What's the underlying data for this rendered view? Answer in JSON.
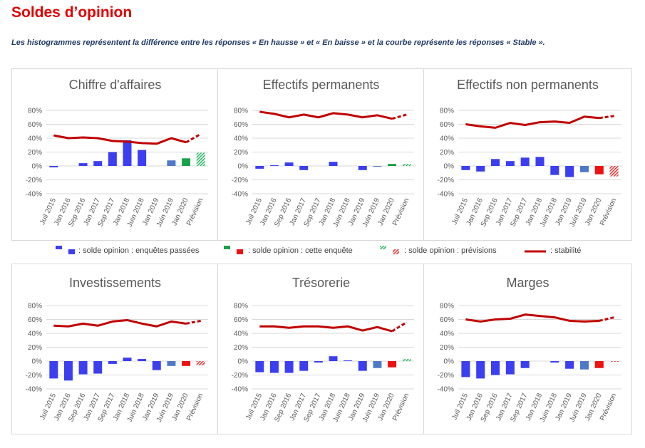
{
  "page": {
    "title": "Soldes d’opinion",
    "subtitle": "Les histogrammes représentent la différence entre les réponses « En hausse » et « En baisse » et la courbe représente les réponses « Stable »."
  },
  "legend": {
    "past_label": ": solde opinion : enquêtes passées",
    "current_label": ": solde opinion : cette enquête",
    "forecast_label": ": solde opinion : prévisions",
    "stability_label": ": stabilité"
  },
  "colors": {
    "past": "#3b3ff0",
    "past_recent": "#4f79c6",
    "current_green": "#1aa24a",
    "current_red": "#ee1111",
    "forecast_green": "#2fb866",
    "forecast_red": "#e53b3b",
    "stability": "#c00000",
    "grid": "#d9d9d9"
  },
  "chart_data": [
    {
      "type": "bar",
      "title": "Chiffre d'affaires",
      "categories": [
        "Juil 2015",
        "Jan 2016",
        "Sep 2016",
        "Jan 2017",
        "Sep 2017",
        "Jan 2018",
        "Juin 2018",
        "Jan 2019",
        "Juin 2019",
        "Jan 2020",
        "Prévision"
      ],
      "ylim": [
        -40,
        80
      ],
      "yticks": [
        "80%",
        "60%",
        "40%",
        "20%",
        "0%",
        "-20%",
        "-40%"
      ],
      "series": [
        {
          "values": [
            -2,
            0,
            4,
            7,
            20,
            37,
            23,
            0,
            8,
            11,
            19
          ]
        },
        {
          "values": [
            44,
            40,
            41,
            40,
            36,
            35,
            33,
            32,
            40,
            34,
            46
          ]
        }
      ]
    },
    {
      "type": "bar",
      "title": "Effectifs permanents",
      "categories": [
        "Juil 2015",
        "Jan 2016",
        "Sep 2016",
        "Jan 2017",
        "Sep 2017",
        "Jan 2018",
        "Juin 2018",
        "Jan 2019",
        "Juin 2019",
        "Jan 2020",
        "Prévision"
      ],
      "ylim": [
        -40,
        80
      ],
      "yticks": [
        "80%",
        "60%",
        "40%",
        "20%",
        "0%",
        "-20%",
        "-40%"
      ],
      "series": [
        {
          "values": [
            -4,
            1,
            5,
            -6,
            0,
            6,
            0,
            -6,
            -1,
            3,
            3
          ]
        },
        {
          "values": [
            78,
            75,
            70,
            74,
            70,
            76,
            74,
            70,
            73,
            68,
            74
          ]
        }
      ]
    },
    {
      "type": "bar",
      "title": "Effectifs non permanents",
      "categories": [
        "Juil 2015",
        "Jan 2016",
        "Sep 2016",
        "Jan 2017",
        "Sep 2017",
        "Jan 2018",
        "Juin 2018",
        "Jan 2019",
        "Juin 2019",
        "Jan 2020",
        "Prévision"
      ],
      "ylim": [
        -40,
        80
      ],
      "yticks": [
        "80%",
        "60%",
        "40%",
        "20%",
        "0%",
        "-20%",
        "-40%"
      ],
      "series": [
        {
          "values": [
            -6,
            -8,
            10,
            7,
            12,
            13,
            -13,
            -16,
            -9,
            -12,
            -15
          ]
        },
        {
          "values": [
            60,
            57,
            55,
            62,
            59,
            63,
            64,
            62,
            71,
            69,
            72
          ]
        }
      ]
    },
    {
      "type": "bar",
      "title": "Investissements",
      "categories": [
        "Juil 2015",
        "Jan 2016",
        "Sep 2016",
        "Jan 2017",
        "Sep 2017",
        "Jan 2018",
        "Juin 2018",
        "Jan 2019",
        "Juin 2019",
        "Jan 2020",
        "Prévision"
      ],
      "ylim": [
        -40,
        80
      ],
      "yticks": [
        "80%",
        "60%",
        "40%",
        "20%",
        "0%",
        "-20%",
        "-40%"
      ],
      "series": [
        {
          "values": [
            -25,
            -28,
            -19,
            -18,
            -4,
            5,
            3,
            -13,
            -7,
            -7,
            -6
          ]
        },
        {
          "values": [
            51,
            50,
            54,
            51,
            57,
            59,
            54,
            50,
            57,
            54,
            58
          ]
        }
      ]
    },
    {
      "type": "bar",
      "title": "Trésorerie",
      "categories": [
        "Juil 2015",
        "Jan 2016",
        "Sep 2016",
        "Jan 2017",
        "Sep 2017",
        "Jan 2018",
        "Juin 2018",
        "Jan 2019",
        "Juin 2019",
        "Jan 2020",
        "Prévision"
      ],
      "ylim": [
        -40,
        80
      ],
      "yticks": [
        "80%",
        "60%",
        "40%",
        "20%",
        "0%",
        "-20%",
        "-40%"
      ],
      "series": [
        {
          "values": [
            -16,
            -17,
            -17,
            -14,
            -2,
            7,
            1,
            -14,
            -10,
            -9,
            3
          ]
        },
        {
          "values": [
            50,
            50,
            48,
            50,
            50,
            48,
            50,
            44,
            49,
            43,
            56
          ]
        }
      ]
    },
    {
      "type": "bar",
      "title": "Marges",
      "categories": [
        "Juil 2015",
        "Jan 2016",
        "Sep 2016",
        "Jan 2017",
        "Sep 2017",
        "Jan 2018",
        "Juin 2018",
        "Jan 2019",
        "Juin 2019",
        "Jan 2020",
        "Prévision"
      ],
      "ylim": [
        -40,
        80
      ],
      "yticks": [
        "80%",
        "60%",
        "40%",
        "20%",
        "0%",
        "-20%",
        "-40%"
      ],
      "series": [
        {
          "values": [
            -23,
            -25,
            -20,
            -19,
            -10,
            0,
            -2,
            -11,
            -12,
            -10,
            -1
          ]
        },
        {
          "values": [
            60,
            57,
            60,
            61,
            67,
            65,
            63,
            58,
            57,
            58,
            63
          ]
        }
      ]
    }
  ]
}
